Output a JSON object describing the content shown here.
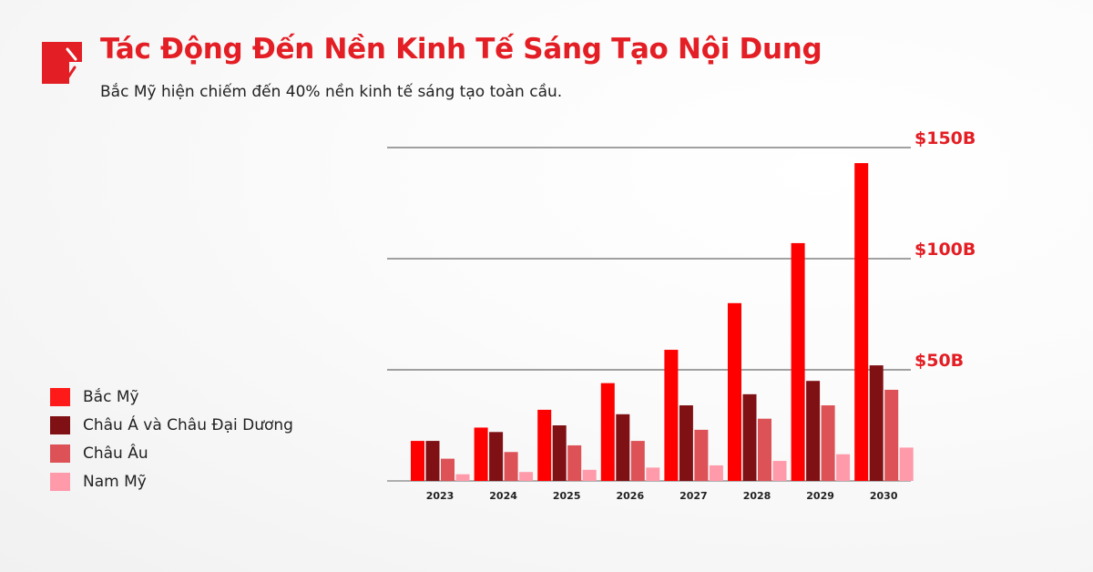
{
  "header": {
    "title": "Tác Động Đến Nền Kinh Tế Sáng Tạo Nội Dung",
    "subtitle": "Bắc Mỹ hiện chiếm đến 40% nền kinh tế sáng tạo toàn cầu."
  },
  "chart_data": {
    "type": "bar",
    "categories": [
      "2023",
      "2024",
      "2025",
      "2026",
      "2027",
      "2028",
      "2029",
      "2030"
    ],
    "series": [
      {
        "name": "Bắc Mỹ",
        "color": "#ff0000",
        "values": [
          18,
          24,
          32,
          44,
          59,
          80,
          107,
          143
        ]
      },
      {
        "name": "Châu Á và Châu Đại Dương",
        "color": "#7f1014",
        "values": [
          18,
          22,
          25,
          30,
          34,
          39,
          45,
          52
        ]
      },
      {
        "name": "Châu Âu",
        "color": "#dc5256",
        "values": [
          10,
          13,
          16,
          18,
          23,
          28,
          34,
          41
        ]
      },
      {
        "name": "Nam Mỹ",
        "color": "#ff9aab",
        "values": [
          3,
          4,
          5,
          6,
          7,
          9,
          12,
          15
        ]
      }
    ],
    "yticks": [
      {
        "value": 50,
        "label": "$50B"
      },
      {
        "value": 100,
        "label": "$100B"
      },
      {
        "value": 150,
        "label": "$150B"
      }
    ],
    "ylim": [
      0,
      150
    ],
    "grid": true,
    "legend_position": "left"
  }
}
